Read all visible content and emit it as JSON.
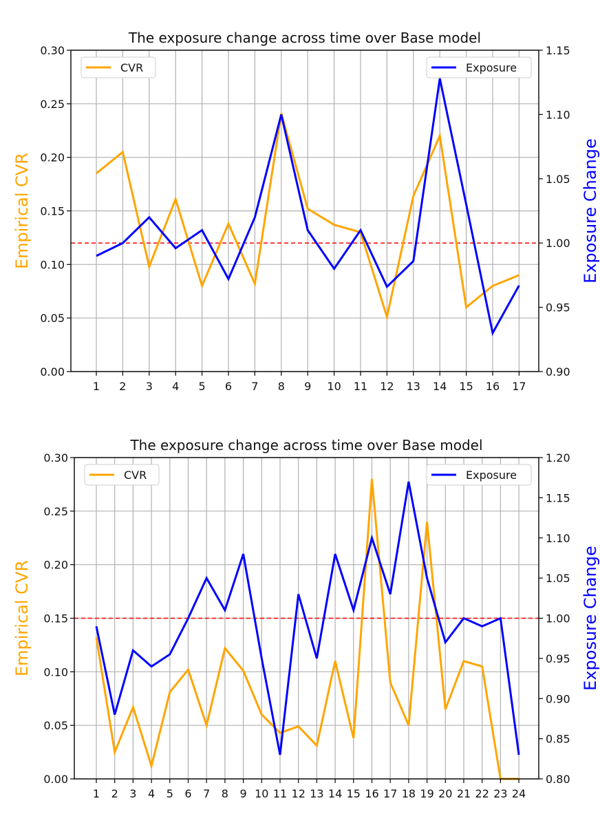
{
  "chart_data": [
    {
      "type": "line",
      "title": "The exposure change across time over Base model",
      "xlabel": "",
      "categories": [
        "1",
        "2",
        "3",
        "4",
        "5",
        "6",
        "7",
        "8",
        "9",
        "10",
        "11",
        "12",
        "13",
        "14",
        "15",
        "16",
        "17"
      ],
      "ylabel_left": "Empirical CVR",
      "ylabel_right": "Exposure Change",
      "ylim_left": [
        0.0,
        0.3
      ],
      "ylim_right": [
        0.9,
        1.15
      ],
      "yticks_left": [
        "0.00",
        "0.05",
        "0.10",
        "0.15",
        "0.20",
        "0.25",
        "0.30"
      ],
      "yticks_right": [
        "0.90",
        "0.95",
        "1.00",
        "1.05",
        "1.10",
        "1.15"
      ],
      "grid": true,
      "reference_line": {
        "axis": "right",
        "value": 1.0,
        "color": "#ff0000",
        "style": "dashed"
      },
      "legend_left": "top-left",
      "legend_right": "top-right",
      "series": [
        {
          "name": "CVR",
          "axis": "left",
          "color": "#ffa500",
          "values": [
            0.185,
            0.205,
            0.098,
            0.161,
            0.08,
            0.138,
            0.082,
            0.241,
            0.152,
            0.137,
            0.13,
            0.051,
            0.164,
            0.22,
            0.06,
            0.08,
            0.09
          ]
        },
        {
          "name": "Exposure",
          "axis": "right",
          "color": "#0000ff",
          "values": [
            0.99,
            1.0,
            1.02,
            0.996,
            1.01,
            0.972,
            1.02,
            1.1,
            1.01,
            0.98,
            1.01,
            0.966,
            0.986,
            1.128,
            1.03,
            0.93,
            0.967
          ]
        }
      ]
    },
    {
      "type": "line",
      "title": "The exposure change across time over Base model",
      "xlabel": "",
      "categories": [
        "1",
        "2",
        "3",
        "4",
        "5",
        "6",
        "7",
        "8",
        "9",
        "10",
        "11",
        "12",
        "13",
        "14",
        "15",
        "16",
        "17",
        "18",
        "19",
        "20",
        "21",
        "22",
        "23",
        "24"
      ],
      "ylabel_left": "Empirical CVR",
      "ylabel_right": "Exposure Change",
      "ylim_left": [
        0.0,
        0.3
      ],
      "ylim_right": [
        0.8,
        1.2
      ],
      "yticks_left": [
        "0.00",
        "0.05",
        "0.10",
        "0.15",
        "0.20",
        "0.25",
        "0.30"
      ],
      "yticks_right": [
        "0.80",
        "0.85",
        "0.90",
        "0.95",
        "1.00",
        "1.05",
        "1.10",
        "1.15",
        "1.20"
      ],
      "grid": true,
      "reference_line": {
        "axis": "right",
        "value": 1.0,
        "color": "#ff0000",
        "style": "dashed"
      },
      "legend_left": "top-left",
      "legend_right": "top-right",
      "series": [
        {
          "name": "CVR",
          "axis": "left",
          "color": "#ffa500",
          "values": [
            0.132,
            0.025,
            0.067,
            0.012,
            0.081,
            0.102,
            0.05,
            0.122,
            0.101,
            0.06,
            0.043,
            0.049,
            0.031,
            0.11,
            0.038,
            0.28,
            0.09,
            0.05,
            0.24,
            0.065,
            0.11,
            0.105,
            0.0,
            0.0
          ]
        },
        {
          "name": "Exposure",
          "axis": "right",
          "color": "#0000ff",
          "values": [
            0.99,
            0.88,
            0.96,
            0.94,
            0.955,
            1.0,
            1.05,
            1.01,
            1.08,
            0.95,
            0.83,
            1.03,
            0.95,
            1.08,
            1.01,
            1.1,
            1.03,
            1.17,
            1.05,
            0.97,
            1.0,
            0.99,
            1.0,
            0.83
          ]
        }
      ]
    }
  ]
}
